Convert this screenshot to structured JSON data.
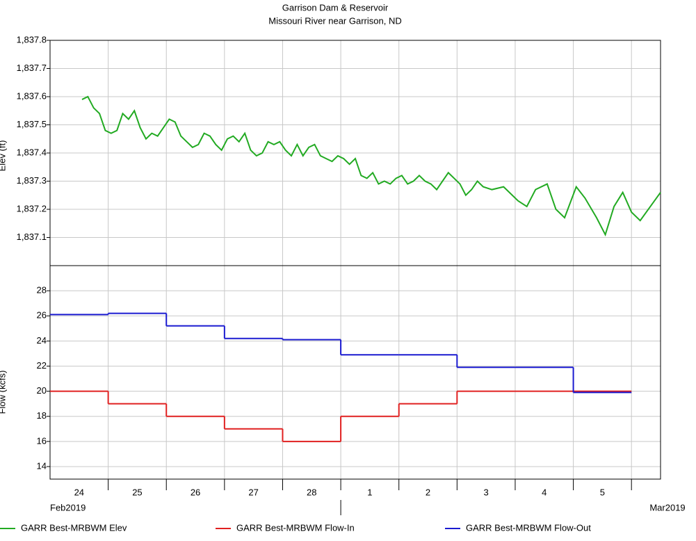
{
  "chart_data": [
    {
      "type": "line",
      "title": "Garrison Dam & Reservoir",
      "subtitle": "Missouri River near Garrison, ND",
      "y_label": "Elev (ft)",
      "xlim": [
        0,
        10.5
      ],
      "ylim": [
        1837.0,
        1837.8
      ],
      "yticks": [
        {
          "value": 1837.1,
          "label": "1,837.1"
        },
        {
          "value": 1837.2,
          "label": "1,837.2"
        },
        {
          "value": 1837.3,
          "label": "1,837.3"
        },
        {
          "value": 1837.4,
          "label": "1,837.4"
        },
        {
          "value": 1837.5,
          "label": "1,837.5"
        },
        {
          "value": 1837.6,
          "label": "1,837.6"
        },
        {
          "value": 1837.7,
          "label": "1,837.7"
        },
        {
          "value": 1837.8,
          "label": "1,837.8"
        }
      ],
      "series": [
        {
          "name": "GARR Best-MRBWM Elev",
          "color": "#22aa22",
          "x": [
            0.55,
            0.65,
            0.75,
            0.85,
            0.95,
            1.05,
            1.15,
            1.25,
            1.35,
            1.45,
            1.55,
            1.65,
            1.75,
            1.85,
            1.95,
            2.05,
            2.15,
            2.25,
            2.35,
            2.45,
            2.55,
            2.65,
            2.75,
            2.85,
            2.95,
            3.05,
            3.15,
            3.25,
            3.35,
            3.45,
            3.55,
            3.65,
            3.75,
            3.85,
            3.95,
            4.05,
            4.15,
            4.25,
            4.35,
            4.45,
            4.55,
            4.65,
            4.75,
            4.85,
            4.95,
            5.05,
            5.15,
            5.25,
            5.35,
            5.45,
            5.55,
            5.65,
            5.75,
            5.85,
            5.95,
            6.05,
            6.15,
            6.25,
            6.35,
            6.45,
            6.55,
            6.65,
            6.75,
            6.85,
            6.95,
            7.05,
            7.15,
            7.25,
            7.35,
            7.45,
            7.6,
            7.8,
            8.05,
            8.2,
            8.35,
            8.55,
            8.7,
            8.85,
            9.05,
            9.2,
            9.4,
            9.55,
            9.7,
            9.85,
            10.0,
            10.15,
            10.5
          ],
          "values": [
            1837.59,
            1837.6,
            1837.56,
            1837.54,
            1837.48,
            1837.47,
            1837.48,
            1837.54,
            1837.52,
            1837.55,
            1837.49,
            1837.45,
            1837.47,
            1837.46,
            1837.49,
            1837.52,
            1837.51,
            1837.46,
            1837.44,
            1837.42,
            1837.43,
            1837.47,
            1837.46,
            1837.43,
            1837.41,
            1837.45,
            1837.46,
            1837.44,
            1837.47,
            1837.41,
            1837.39,
            1837.4,
            1837.44,
            1837.43,
            1837.44,
            1837.41,
            1837.39,
            1837.43,
            1837.39,
            1837.42,
            1837.43,
            1837.39,
            1837.38,
            1837.37,
            1837.39,
            1837.38,
            1837.36,
            1837.38,
            1837.32,
            1837.31,
            1837.33,
            1837.29,
            1837.3,
            1837.29,
            1837.31,
            1837.32,
            1837.29,
            1837.3,
            1837.32,
            1837.3,
            1837.29,
            1837.27,
            1837.3,
            1837.33,
            1837.31,
            1837.29,
            1837.25,
            1837.27,
            1837.3,
            1837.28,
            1837.27,
            1837.28,
            1837.23,
            1837.21,
            1837.27,
            1837.29,
            1837.2,
            1837.17,
            1837.28,
            1837.24,
            1837.17,
            1837.11,
            1837.21,
            1837.26,
            1837.19,
            1837.16,
            1837.26
          ]
        }
      ]
    },
    {
      "type": "step",
      "y_label": "Flow (kcfs)",
      "xlim": [
        0,
        10.5
      ],
      "ylim": [
        13,
        30
      ],
      "yticks": [
        14,
        16,
        18,
        20,
        22,
        24,
        26,
        28
      ],
      "xticks": [
        {
          "value": 0.5,
          "label": "24"
        },
        {
          "value": 1.5,
          "label": "25"
        },
        {
          "value": 2.5,
          "label": "26"
        },
        {
          "value": 3.5,
          "label": "27"
        },
        {
          "value": 4.5,
          "label": "28"
        },
        {
          "value": 5.5,
          "label": "1"
        },
        {
          "value": 6.5,
          "label": "2"
        },
        {
          "value": 7.5,
          "label": "3"
        },
        {
          "value": 8.5,
          "label": "4"
        },
        {
          "value": 9.5,
          "label": "5"
        }
      ],
      "xgrid": [
        1,
        2,
        3,
        4,
        5,
        6,
        7,
        8,
        9,
        10
      ],
      "month_labels": [
        {
          "value": 0,
          "label": "Feb2019"
        },
        {
          "value": 10.5,
          "label": "Mar2019"
        }
      ],
      "month_start": 5,
      "x": [
        0,
        1,
        2,
        3,
        4,
        5,
        6,
        7,
        8,
        9
      ],
      "series": [
        {
          "name": "GARR Best-MRBWM Flow-In",
          "color": "#e02020",
          "values": [
            20,
            19,
            18,
            17,
            16,
            18,
            19,
            20,
            20,
            20
          ]
        },
        {
          "name": "GARR Best-MRBWM Flow-Out",
          "color": "#1a1ad0",
          "values": [
            26.1,
            26.2,
            25.2,
            24.2,
            24.1,
            22.9,
            22.9,
            21.9,
            21.9,
            19.9
          ]
        }
      ]
    }
  ]
}
